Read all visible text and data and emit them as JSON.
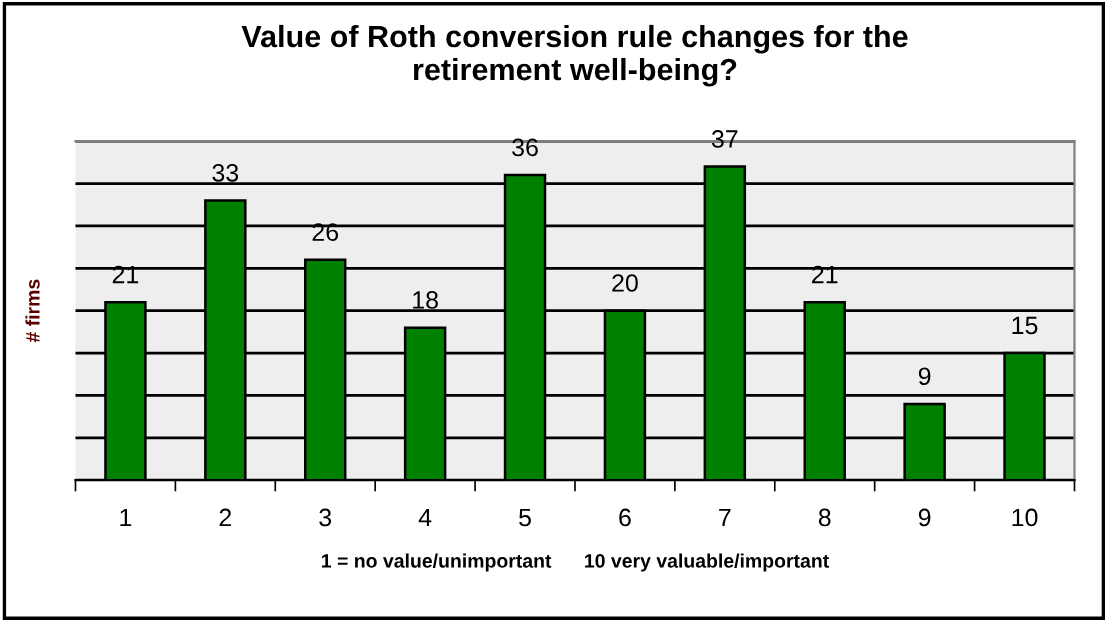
{
  "chart_data": {
    "type": "bar",
    "title": "Value of Roth conversion rule changes for the\nretirement well-being?",
    "xlabel": "1 = no value/unimportant      10 very valuable/important",
    "ylabel": "# firms",
    "categories": [
      "1",
      "2",
      "3",
      "4",
      "5",
      "6",
      "7",
      "8",
      "9",
      "10"
    ],
    "values": [
      21,
      33,
      26,
      18,
      36,
      20,
      37,
      21,
      9,
      15
    ],
    "color": "#008000",
    "ylim": [
      0,
      40
    ],
    "yticks": [
      {
        "value": 0,
        "label": null
      },
      {
        "value": 5,
        "label": null
      },
      {
        "value": 10,
        "label": null
      },
      {
        "value": 15,
        "label": null
      },
      {
        "value": 20,
        "label": null
      },
      {
        "value": 25,
        "label": null
      },
      {
        "value": 30,
        "label": null
      },
      {
        "value": 35,
        "label": null
      },
      {
        "value": 40,
        "label": null
      }
    ],
    "tick_labels": "x",
    "grid": "y",
    "data_labels": true,
    "legend": false
  }
}
